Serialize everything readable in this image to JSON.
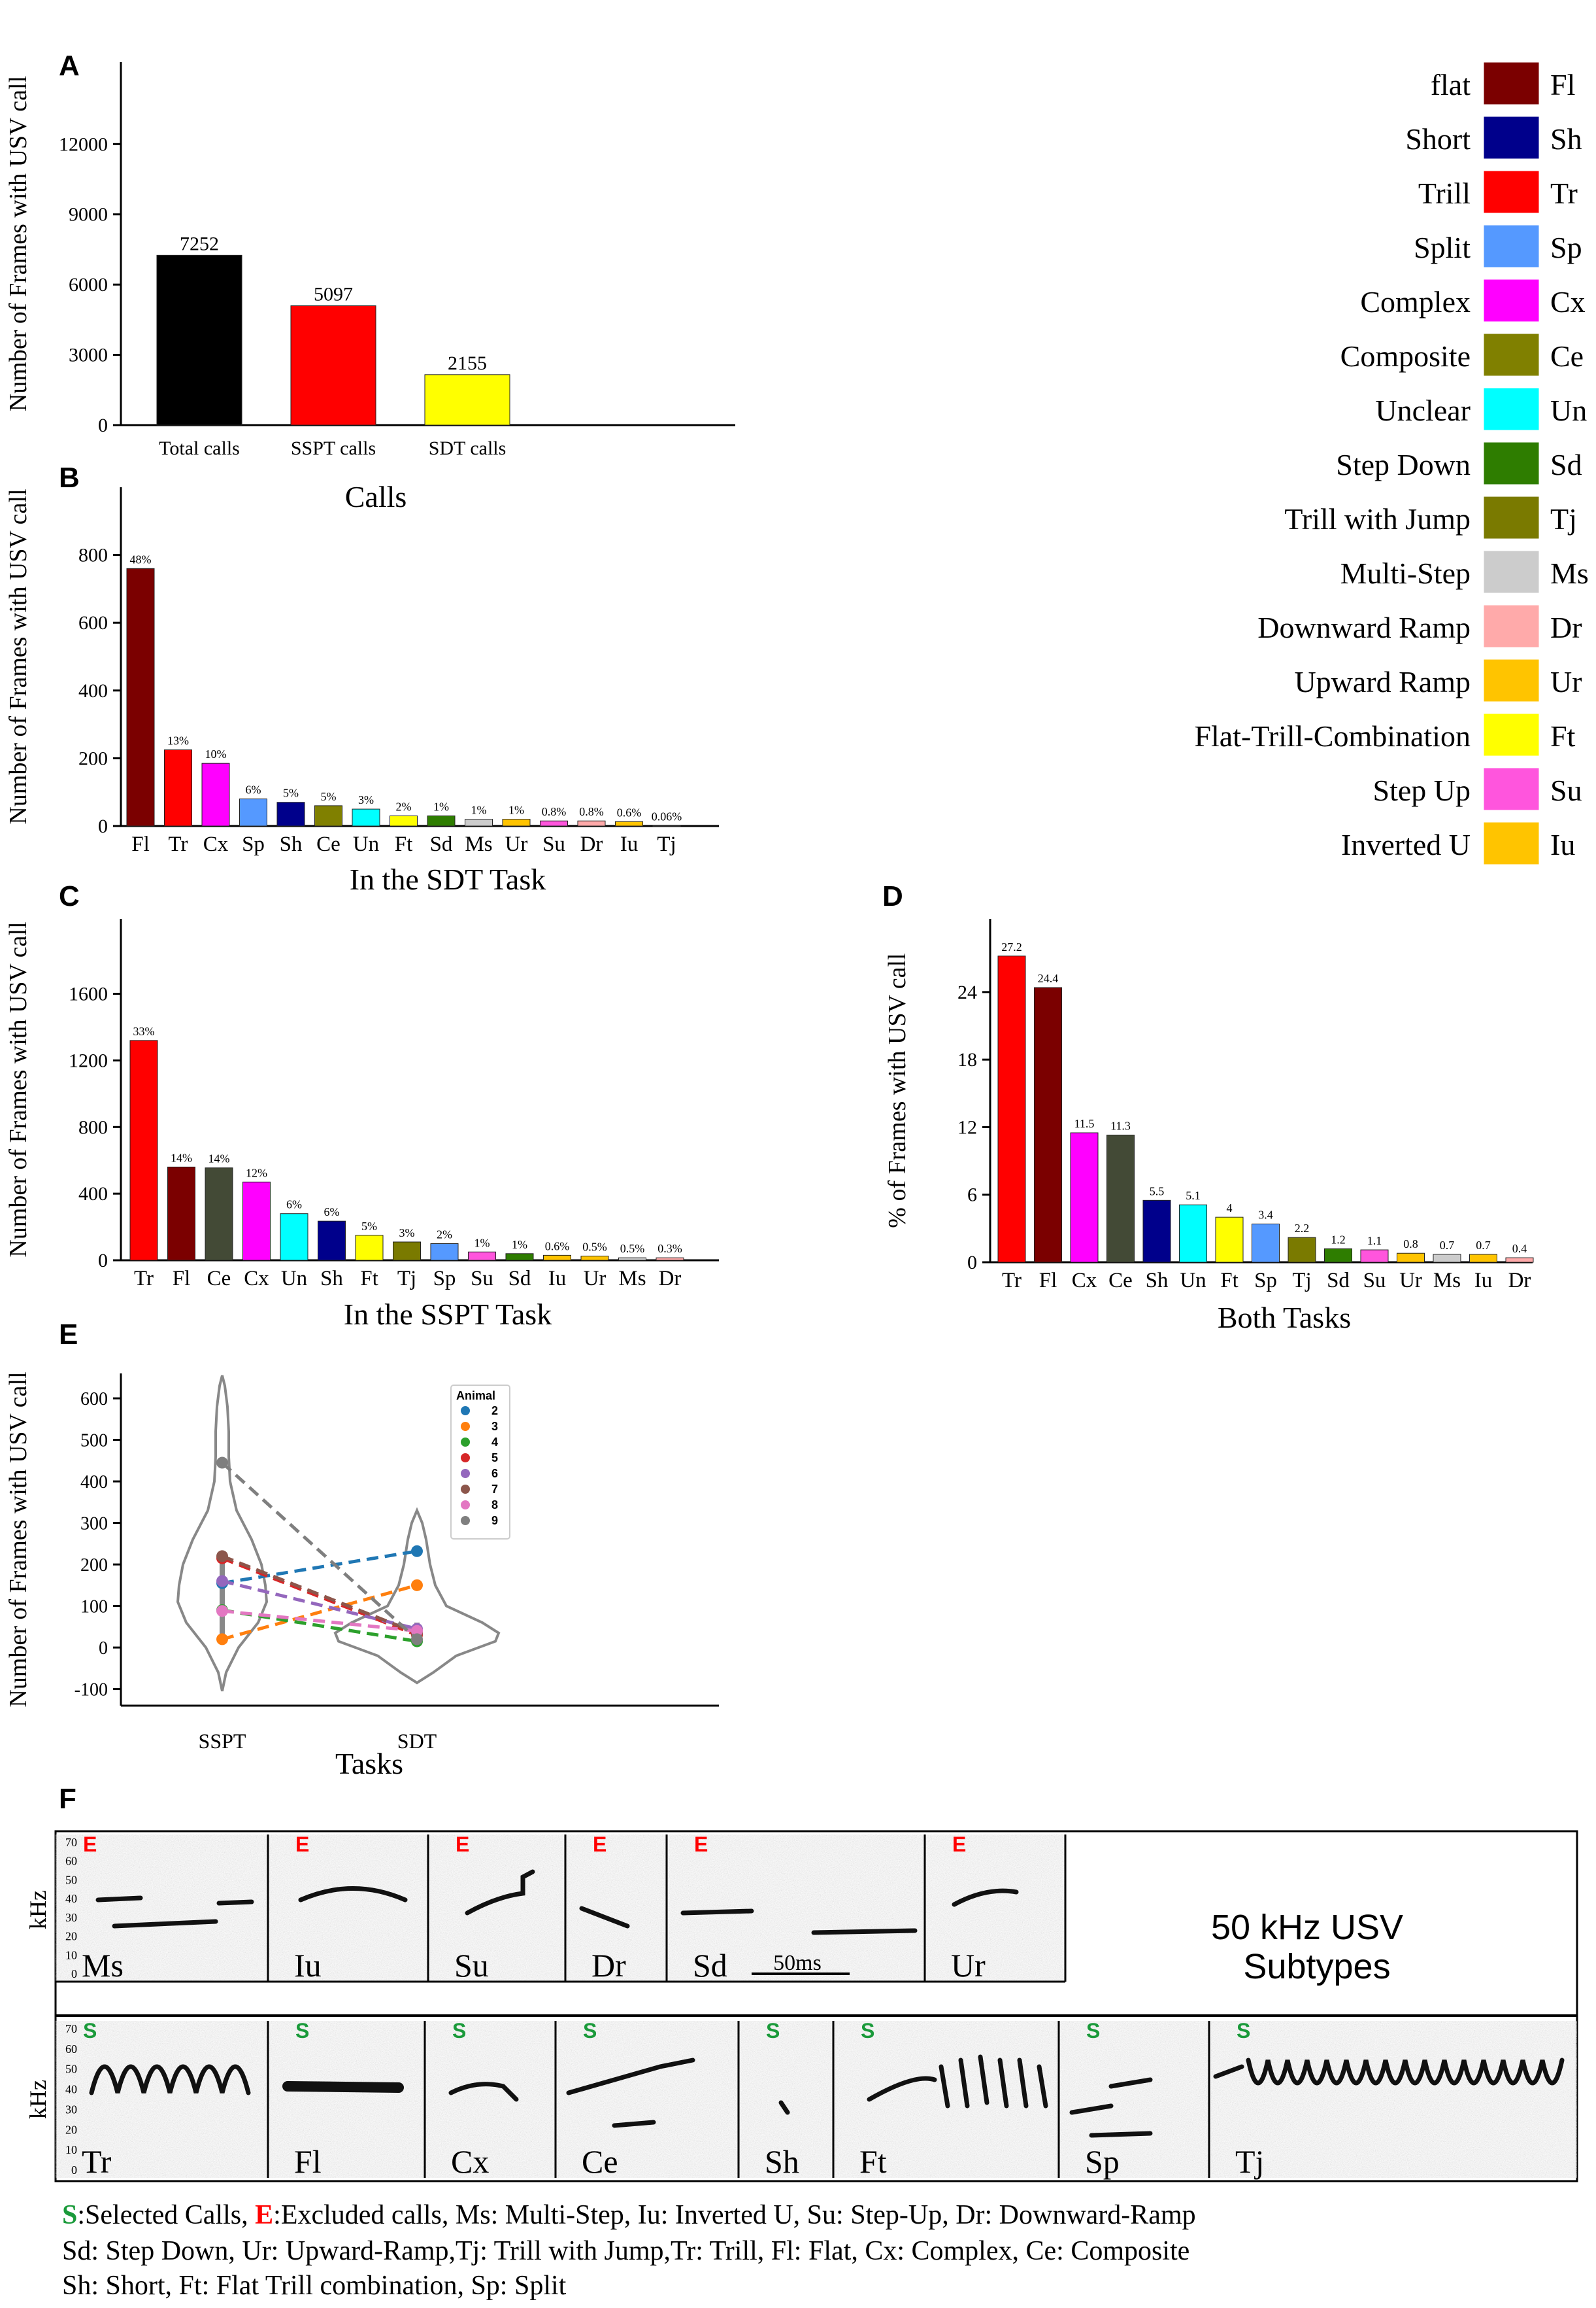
{
  "colors": {
    "Fl": "#7b0000",
    "Sh": "#00008b",
    "Tr": "#ff0000",
    "Sp": "#5599ff",
    "Cx": "#ff00ff",
    "Ce": "#808000",
    "Un": "#00ffff",
    "Sd": "#2e7d00",
    "Tj": "#7a7a00",
    "Ms": "#cccccc",
    "Dr": "#ffaaaa",
    "Ur": "#ffc400",
    "Ft": "#ffff00",
    "Su": "#ff55dd",
    "Iu": "#ffc400",
    "Total": "#000000",
    "SSPT": "#ff0000",
    "SDT": "#ffff00",
    "CeDark": "#434a36"
  },
  "legend": [
    {
      "name": "flat",
      "code": "Fl"
    },
    {
      "name": "Short",
      "code": "Sh"
    },
    {
      "name": "Trill",
      "code": "Tr"
    },
    {
      "name": "Split",
      "code": "Sp"
    },
    {
      "name": "Complex",
      "code": "Cx"
    },
    {
      "name": "Composite",
      "code": "Ce"
    },
    {
      "name": "Unclear",
      "code": "Un"
    },
    {
      "name": "Step Down",
      "code": "Sd"
    },
    {
      "name": "Trill with Jump",
      "code": "Tj"
    },
    {
      "name": "Multi-Step",
      "code": "Ms"
    },
    {
      "name": "Downward Ramp",
      "code": "Dr"
    },
    {
      "name": "Upward Ramp",
      "code": "Ur"
    },
    {
      "name": "Flat-Trill-Combination",
      "code": "Ft"
    },
    {
      "name": "Step Up",
      "code": "Su"
    },
    {
      "name": "Inverted U",
      "code": "Iu"
    }
  ],
  "chart_data": [
    {
      "panel": "A",
      "type": "bar",
      "title": "Calls",
      "xlabel": "Calls",
      "ylabel": "Number of Frames with USV call",
      "categories": [
        "Total calls",
        "SSPT calls",
        "SDT calls"
      ],
      "values": [
        7252,
        5097,
        2155
      ],
      "labels": [
        "7252",
        "5097",
        "2155"
      ],
      "colorKeys": [
        "Total",
        "SSPT",
        "SDT"
      ],
      "yticks": [
        0,
        3000,
        6000,
        9000,
        12000
      ],
      "ylim": [
        0,
        15500
      ]
    },
    {
      "panel": "B",
      "type": "bar",
      "xlabel": "In the SDT Task",
      "ylabel": "Number of Frames with USV call",
      "categories": [
        "Fl",
        "Tr",
        "Cx",
        "Sp",
        "Sh",
        "Ce",
        "Un",
        "Ft",
        "Sd",
        "Ms",
        "Ur",
        "Su",
        "Dr",
        "Iu",
        "Tj"
      ],
      "values": [
        760,
        225,
        185,
        80,
        70,
        60,
        50,
        30,
        30,
        20,
        20,
        15,
        15,
        13,
        1
      ],
      "labels": [
        "48%",
        "13%",
        "10%",
        "6%",
        "5%",
        "5%",
        "3%",
        "2%",
        "1%",
        "1%",
        "1%",
        "0.8%",
        "0.8%",
        "0.6%",
        "0.06%"
      ],
      "colorKeys": [
        "Fl",
        "Tr",
        "Cx",
        "Sp",
        "Sh",
        "Ce",
        "Un",
        "Ft",
        "Sd",
        "Ms",
        "Ur",
        "Su",
        "Dr",
        "Iu",
        "Tj"
      ],
      "yticks": [
        0,
        200,
        400,
        600,
        800
      ],
      "ylim": [
        0,
        1000
      ]
    },
    {
      "panel": "C",
      "type": "bar",
      "xlabel": "In the SSPT Task",
      "ylabel": "Number of Frames with USV call",
      "categories": [
        "Tr",
        "Fl",
        "Ce",
        "Cx",
        "Un",
        "Sh",
        "Ft",
        "Tj",
        "Sp",
        "Su",
        "Sd",
        "Iu",
        "Ur",
        "Ms",
        "Dr"
      ],
      "values": [
        1320,
        560,
        555,
        470,
        280,
        235,
        150,
        110,
        100,
        50,
        40,
        30,
        25,
        15,
        15
      ],
      "labels": [
        "33%",
        "14%",
        "14%",
        "12%",
        "6%",
        "6%",
        "5%",
        "3%",
        "2%",
        "1%",
        "1%",
        "0.6%",
        "0.5%",
        "0.5%",
        "0.3%"
      ],
      "colorKeys": [
        "Tr",
        "Fl",
        "CeDark",
        "Cx",
        "Un",
        "Sh",
        "Ft",
        "Tj",
        "Sp",
        "Su",
        "Sd",
        "Iu",
        "Ur",
        "Ms",
        "Dr"
      ],
      "yticks": [
        0,
        400,
        800,
        1200,
        1600
      ],
      "ylim": [
        0,
        2050
      ]
    },
    {
      "panel": "D",
      "type": "bar",
      "xlabel": "Both Tasks",
      "ylabel": "% of Frames with USV call",
      "categories": [
        "Tr",
        "Fl",
        "Cx",
        "Ce",
        "Sh",
        "Un",
        "Ft",
        "Sp",
        "Tj",
        "Sd",
        "Su",
        "Ur",
        "Ms",
        "Iu",
        "Dr"
      ],
      "values": [
        27.2,
        24.4,
        11.5,
        11.3,
        5.5,
        5.1,
        4,
        3.4,
        2.2,
        1.2,
        1.1,
        0.8,
        0.7,
        0.7,
        0.4
      ],
      "labels": [
        "27.2",
        "24.4",
        "11.5",
        "11.3",
        "5.5",
        "5.1",
        "4",
        "3.4",
        "2.2",
        "1.2",
        "1.1",
        "0.8",
        "0.7",
        "0.7",
        "0.4"
      ],
      "colorKeys": [
        "Tr",
        "Fl",
        "Cx",
        "CeDark",
        "Sh",
        "Un",
        "Ft",
        "Sp",
        "Tj",
        "Sd",
        "Su",
        "Ur",
        "Ms",
        "Iu",
        "Dr"
      ],
      "yticks": [
        0,
        6,
        12,
        18,
        24
      ],
      "ylim": [
        0,
        30.5
      ]
    },
    {
      "panel": "E",
      "type": "violin-scatter",
      "xlabel": "Tasks",
      "ylabel": "Number of Frames with USV call",
      "categories": [
        "SSPT",
        "SDT"
      ],
      "legend_title": "Animal",
      "series": [
        {
          "name": "2",
          "color": "#1f77b4",
          "values": [
            155,
            232
          ]
        },
        {
          "name": "3",
          "color": "#ff7f0e",
          "values": [
            20,
            150
          ]
        },
        {
          "name": "4",
          "color": "#2ca02c",
          "values": [
            90,
            15
          ]
        },
        {
          "name": "5",
          "color": "#d62728",
          "values": [
            215,
            30
          ]
        },
        {
          "name": "6",
          "color": "#9467bd",
          "values": [
            160,
            45
          ]
        },
        {
          "name": "7",
          "color": "#8c564b",
          "values": [
            220,
            35
          ]
        },
        {
          "name": "8",
          "color": "#e377c2",
          "values": [
            88,
            40
          ]
        },
        {
          "name": "9",
          "color": "#7f7f7f",
          "values": [
            445,
            20
          ]
        }
      ],
      "yticks": [
        -100,
        0,
        100,
        200,
        300,
        400,
        500,
        600
      ],
      "ylim": [
        -140,
        660
      ]
    }
  ],
  "panel_letters": [
    "A",
    "B",
    "C",
    "D",
    "E",
    "F"
  ],
  "panelF": {
    "title_line1": "50 kHz USV",
    "title_line2": "Subtypes",
    "y_label": "kHz",
    "y_ticks": [
      "70",
      "60",
      "50",
      "40",
      "30",
      "20",
      "10",
      "0"
    ],
    "scale_bar": "50ms",
    "excluded_marker": "E",
    "selected_marker": "S",
    "excluded": [
      "Ms",
      "Iu",
      "Su",
      "Dr",
      "Sd",
      "Ur"
    ],
    "selected": [
      "Tr",
      "Fl",
      "Cx",
      "Ce",
      "Sh",
      "Ft",
      "Sp",
      "Tj"
    ],
    "caption": {
      "line1_s": "S",
      "line1_a": ":Selected Calls, ",
      "line1_e": "E",
      "line1_b": ":Excluded calls, Ms: Multi-Step, Iu: Inverted U, Su: Step-Up, Dr: Downward-Ramp",
      "line2": "Sd: Step Down, Ur: Upward-Ramp,Tj: Trill with Jump,Tr: Trill, Fl: Flat, Cx: Complex, Ce: Composite",
      "line3": "Sh: Short, Ft: Flat Trill combination, Sp: Split"
    }
  }
}
